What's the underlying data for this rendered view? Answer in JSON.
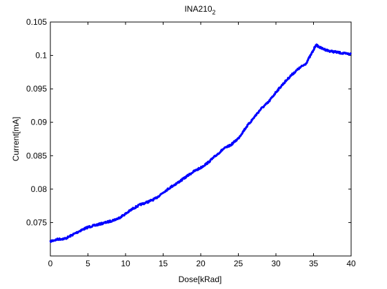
{
  "chart_data": {
    "type": "line",
    "title": "INA210",
    "title_subscript": "2",
    "xlabel": "Dose[kRad]",
    "ylabel": "Current[mA]",
    "xlim": [
      0,
      40
    ],
    "ylim": [
      0.07,
      0.105
    ],
    "x_ticks": [
      0,
      5,
      10,
      15,
      20,
      25,
      30,
      35,
      40
    ],
    "x_tick_labels": [
      "0",
      "5",
      "10",
      "15",
      "20",
      "25",
      "30",
      "35",
      "40"
    ],
    "y_ticks": [
      0.075,
      0.08,
      0.085,
      0.09,
      0.095,
      0.1,
      0.105
    ],
    "y_tick_labels": [
      "0.075",
      "0.08",
      "0.085",
      "0.09",
      "0.095",
      "0.1",
      "0.105"
    ],
    "grid": false,
    "series": [
      {
        "color": "#0000ff",
        "x": [
          0,
          1,
          2,
          3,
          4,
          5,
          6,
          7,
          8,
          9,
          10,
          11,
          12,
          13,
          14,
          15,
          16,
          17,
          18,
          19,
          20,
          21,
          22,
          23,
          24,
          25,
          26,
          27,
          28,
          29,
          30,
          31,
          32,
          33,
          34,
          35,
          35.3,
          36,
          37,
          38,
          39,
          40
        ],
        "y": [
          0.0722,
          0.0725,
          0.0726,
          0.0732,
          0.0738,
          0.0743,
          0.0746,
          0.0749,
          0.0752,
          0.0756,
          0.0763,
          0.0771,
          0.0777,
          0.0781,
          0.0786,
          0.0795,
          0.0803,
          0.081,
          0.0818,
          0.0826,
          0.0832,
          0.084,
          0.085,
          0.086,
          0.0866,
          0.0876,
          0.0892,
          0.0906,
          0.092,
          0.093,
          0.0945,
          0.0958,
          0.097,
          0.098,
          0.0988,
          0.1008,
          0.1016,
          0.1011,
          0.1007,
          0.1005,
          0.1003,
          0.1002
        ]
      }
    ]
  }
}
